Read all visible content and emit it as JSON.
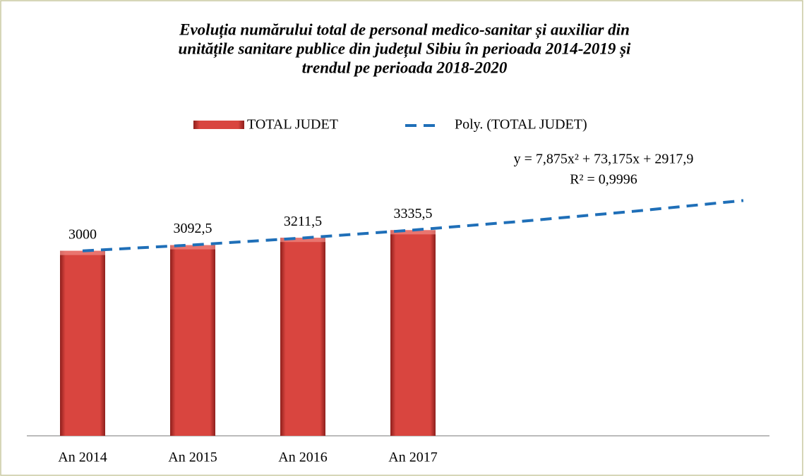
{
  "chart_data": {
    "type": "bar",
    "title": [
      "Evoluția numărului total de personal medico-sanitar și auxiliar din",
      "unitățile sanitare publice din județul Sibiu în perioada 2014-2019 și",
      "trendul pe perioada 2018-2020"
    ],
    "categories": [
      "An 2014",
      "An 2015",
      "An 2016",
      "An 2017",
      null,
      null,
      null
    ],
    "series": [
      {
        "name": "TOTAL JUDET",
        "type": "bar",
        "color": "#d9453f",
        "values": [
          3000,
          3092.5,
          3211.5,
          3335.5,
          null,
          null,
          null
        ],
        "value_labels": [
          "3000",
          "3092,5",
          "3211,5",
          "3335,5",
          null,
          null,
          null
        ]
      },
      {
        "name": "Poly. (TOTAL JUDET)",
        "type": "line",
        "color": "#1f6fb8",
        "dashed": true,
        "values": [
          2998.95,
          3095.75,
          3208.4,
          3336.6,
          3480.65,
          3640.45,
          3816
        ]
      }
    ],
    "annotations": [
      "y = 7,875x² + 73,175x + 2917,9",
      "R² = 0,9996"
    ],
    "ylim": [
      0,
      3900
    ],
    "legend": "top"
  }
}
